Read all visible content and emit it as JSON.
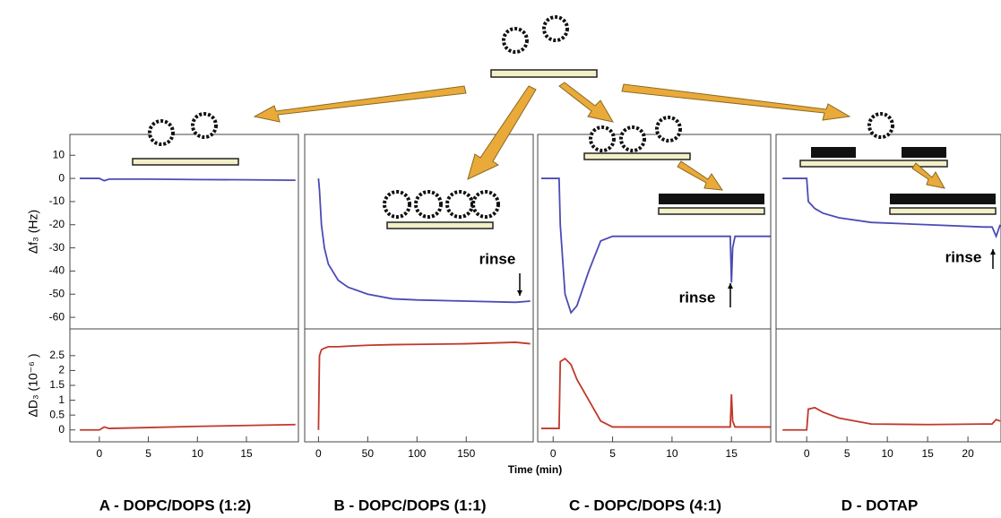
{
  "chart_data": [
    {
      "type": "line",
      "title": "A - DOPC/DOPS (1:2)",
      "ylabel": "Δf₃ (Hz)",
      "y2label": "ΔD₃ (10⁻⁶ )",
      "xlim": [
        -3,
        20.3
      ],
      "xticks": [
        0,
        5,
        10,
        15
      ],
      "ylim": [
        -65,
        19
      ],
      "yticks": [
        10,
        0,
        -10,
        -20,
        -30,
        -40,
        -50,
        -60
      ],
      "y2lim": [
        -0.4,
        3.4
      ],
      "y2ticks": [
        0,
        0.5,
        1,
        1.5,
        2,
        2.5
      ],
      "x": [
        -2,
        0,
        0.5,
        1,
        5,
        10,
        15,
        20
      ],
      "series": [
        {
          "color": "#4b4bb5",
          "values": [
            0,
            0,
            -1,
            -0.3,
            -0.3,
            -0.5,
            -0.6,
            -0.8
          ]
        },
        {
          "color": "#c0392b",
          "axis": "y2",
          "values": [
            0,
            0,
            0.1,
            0.05,
            0.08,
            0.12,
            0.15,
            0.18
          ]
        }
      ]
    },
    {
      "type": "line",
      "title": "B - DOPC/DOPS (1:1)",
      "annotation": "rinse",
      "xlim": [
        -14,
        218
      ],
      "xticks": [
        0,
        50,
        100,
        150
      ],
      "ylim": [
        -65,
        19
      ],
      "y2lim": [
        -0.4,
        3.4
      ],
      "x": [
        0,
        1,
        3,
        6,
        10,
        20,
        30,
        50,
        75,
        100,
        150,
        200,
        215
      ],
      "series": [
        {
          "color": "#4b4bb5",
          "values": [
            0,
            -5,
            -20,
            -30,
            -37,
            -44,
            -47,
            -50,
            -52,
            -52.5,
            -53,
            -53.5,
            -53
          ]
        },
        {
          "color": "#c0392b",
          "axis": "y2",
          "values": [
            0,
            2.5,
            2.7,
            2.75,
            2.8,
            2.8,
            2.82,
            2.85,
            2.87,
            2.88,
            2.9,
            2.95,
            2.9
          ]
        }
      ]
    },
    {
      "type": "line",
      "title": "C - DOPC/DOPS (4:1)",
      "annotation": "rinse",
      "xlabel": "Time (min)",
      "xlim": [
        -1.3,
        18.3
      ],
      "xticks": [
        0,
        5,
        10,
        15
      ],
      "ylim": [
        -65,
        19
      ],
      "y2lim": [
        -0.4,
        3.4
      ],
      "x": [
        -1,
        0.5,
        0.6,
        1,
        1.5,
        2,
        3,
        4,
        5,
        8,
        14.9,
        15,
        15.1,
        15.3,
        18.3
      ],
      "series": [
        {
          "color": "#4b4bb5",
          "values": [
            0,
            0,
            -20,
            -50,
            -58,
            -55,
            -40,
            -27,
            -25,
            -25,
            -25,
            -45,
            -30,
            -25,
            -25
          ]
        },
        {
          "color": "#c0392b",
          "axis": "y2",
          "values": [
            0.05,
            0.05,
            2.3,
            2.4,
            2.2,
            1.7,
            1.0,
            0.3,
            0.1,
            0.1,
            0.1,
            1.2,
            0.3,
            0.1,
            0.1
          ]
        }
      ]
    },
    {
      "type": "line",
      "title": "D - DOTAP",
      "annotation": "rinse",
      "xlim": [
        -3.8,
        24.1
      ],
      "xticks": [
        0,
        5,
        10,
        15,
        20
      ],
      "ylim": [
        -65,
        19
      ],
      "y2lim": [
        -0.4,
        3.4
      ],
      "x": [
        -3,
        0,
        0.2,
        1,
        2,
        4,
        8,
        15,
        22,
        23,
        23.5,
        24
      ],
      "series": [
        {
          "color": "#4b4bb5",
          "values": [
            0,
            0,
            -10,
            -13,
            -15,
            -17,
            -19,
            -20,
            -21,
            -21,
            -25,
            -20
          ]
        },
        {
          "color": "#c0392b",
          "axis": "y2",
          "values": [
            0,
            0,
            0.7,
            0.75,
            0.6,
            0.4,
            0.2,
            0.18,
            0.2,
            0.2,
            0.35,
            0.3
          ]
        }
      ]
    }
  ]
}
